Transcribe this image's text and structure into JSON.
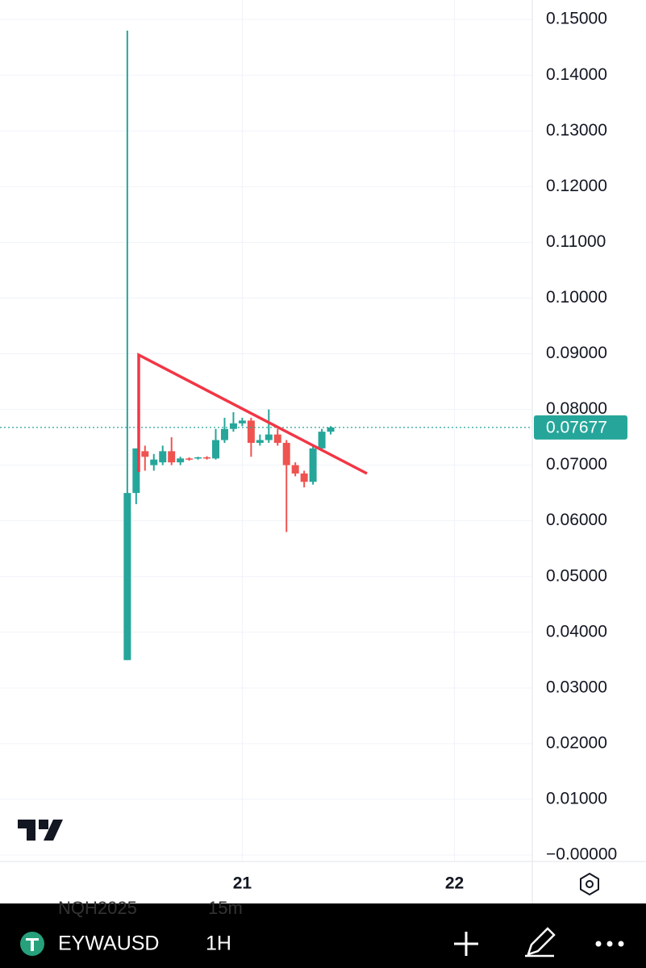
{
  "chart_data": {
    "type": "candlestick",
    "x": [
      11,
      12,
      13,
      14,
      15,
      16,
      17,
      18,
      19,
      20,
      21,
      22,
      23,
      24,
      25,
      26,
      27,
      28,
      29,
      30,
      31,
      32,
      33,
      34
    ],
    "open": [
      0.035,
      0.065,
      0.0725,
      0.07,
      0.0705,
      0.0725,
      0.0705,
      0.0712,
      0.0712,
      0.0714,
      0.0712,
      0.0745,
      0.0765,
      0.0775,
      0.078,
      0.074,
      0.0745,
      0.0755,
      0.074,
      0.07,
      0.0685,
      0.067,
      0.073,
      0.076
    ],
    "high": [
      0.148,
      0.073,
      0.0735,
      0.072,
      0.0735,
      0.075,
      0.0715,
      0.0714,
      0.0715,
      0.0716,
      0.0765,
      0.0785,
      0.0795,
      0.0785,
      0.0785,
      0.0755,
      0.08,
      0.0765,
      0.0745,
      0.0705,
      0.069,
      0.0735,
      0.0765,
      0.077
    ],
    "low": [
      0.035,
      0.063,
      0.069,
      0.069,
      0.07,
      0.07,
      0.07,
      0.0708,
      0.071,
      0.071,
      0.071,
      0.074,
      0.076,
      0.077,
      0.0715,
      0.0735,
      0.074,
      0.0735,
      0.058,
      0.068,
      0.066,
      0.0665,
      0.0725,
      0.0755
    ],
    "close": [
      0.065,
      0.073,
      0.0715,
      0.071,
      0.0725,
      0.0705,
      0.0712,
      0.071,
      0.0714,
      0.0712,
      0.0745,
      0.0765,
      0.0775,
      0.078,
      0.074,
      0.0745,
      0.0755,
      0.074,
      0.07,
      0.0685,
      0.067,
      0.073,
      0.076,
      0.07677
    ],
    "up_color": "#26a69a",
    "down_color": "#ef5350",
    "ylim": [
      -0.00116,
      0.1535
    ],
    "yticks": [
      {
        "value": 0.15,
        "label": "0.15000"
      },
      {
        "value": 0.14,
        "label": "0.14000"
      },
      {
        "value": 0.13,
        "label": "0.13000"
      },
      {
        "value": 0.12,
        "label": "0.12000"
      },
      {
        "value": 0.11,
        "label": "0.11000"
      },
      {
        "value": 0.1,
        "label": "0.10000"
      },
      {
        "value": 0.09,
        "label": "0.09000"
      },
      {
        "value": 0.08,
        "label": "0.08000"
      },
      {
        "value": 0.07,
        "label": "0.07000"
      },
      {
        "value": 0.06,
        "label": "0.06000"
      },
      {
        "value": 0.05,
        "label": "0.05000"
      },
      {
        "value": 0.04,
        "label": "0.04000"
      },
      {
        "value": 0.03,
        "label": "0.03000"
      },
      {
        "value": 0.02,
        "label": "0.02000"
      },
      {
        "value": 0.01,
        "label": "0.01000"
      },
      {
        "value": 0,
        "label": "−0.00000"
      }
    ],
    "xlim": [
      -3.4,
      56.8
    ],
    "xticks": [
      {
        "value": 24,
        "label": "21"
      },
      {
        "value": 48,
        "label": "22"
      }
    ],
    "grid": true,
    "last_price": {
      "value": 0.07677,
      "label": "0.07677"
    }
  },
  "toolbar": {
    "symbol": "EYWAUSD",
    "interval": "1H",
    "watermark_symbol": "NQH2025",
    "watermark_interval": "15m"
  }
}
